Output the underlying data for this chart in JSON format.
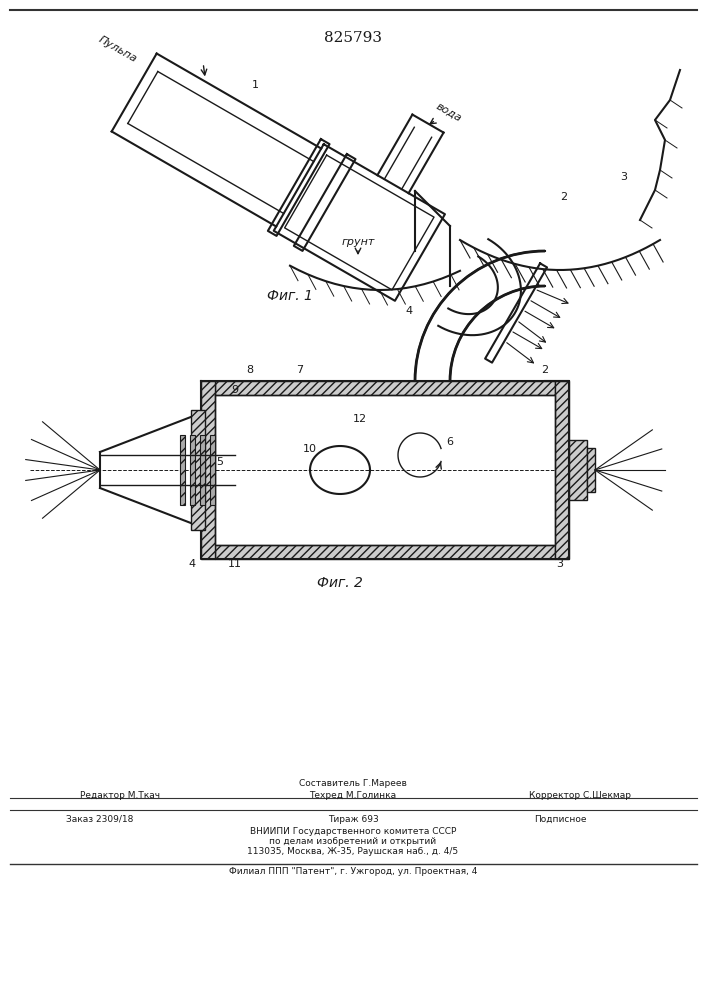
{
  "patent_number": "825793",
  "fig1_label": "Фиг. 1",
  "fig2_label": "Фиг. 2",
  "footer_line1_center": "Составитель Г.Мареев",
  "footer_line1_left": "Редактор М.Ткач",
  "footer_line2_center": "Техред М.Голинка",
  "footer_line1_right": "Корректор С.Шекмар",
  "footer_line3_left": "Заказ 2309/18",
  "footer_line3_center": "Тираж 693",
  "footer_line3_right": "Подписное",
  "footer_line4": "ВНИИПИ Государственного комитета СССР",
  "footer_line5": "по делам изобретений и открытий",
  "footer_line6": "113035, Москва, Ж-35, Раушская наб., д. 4/5",
  "footer_line7": "Филиал ППП \"Патент\", г. Ужгород, ул. Проектная, 4",
  "bg_color": "#ffffff",
  "line_color": "#1a1a1a",
  "label_pulp": "Пульпа",
  "label_water": "вода",
  "label_ground": "грунт"
}
